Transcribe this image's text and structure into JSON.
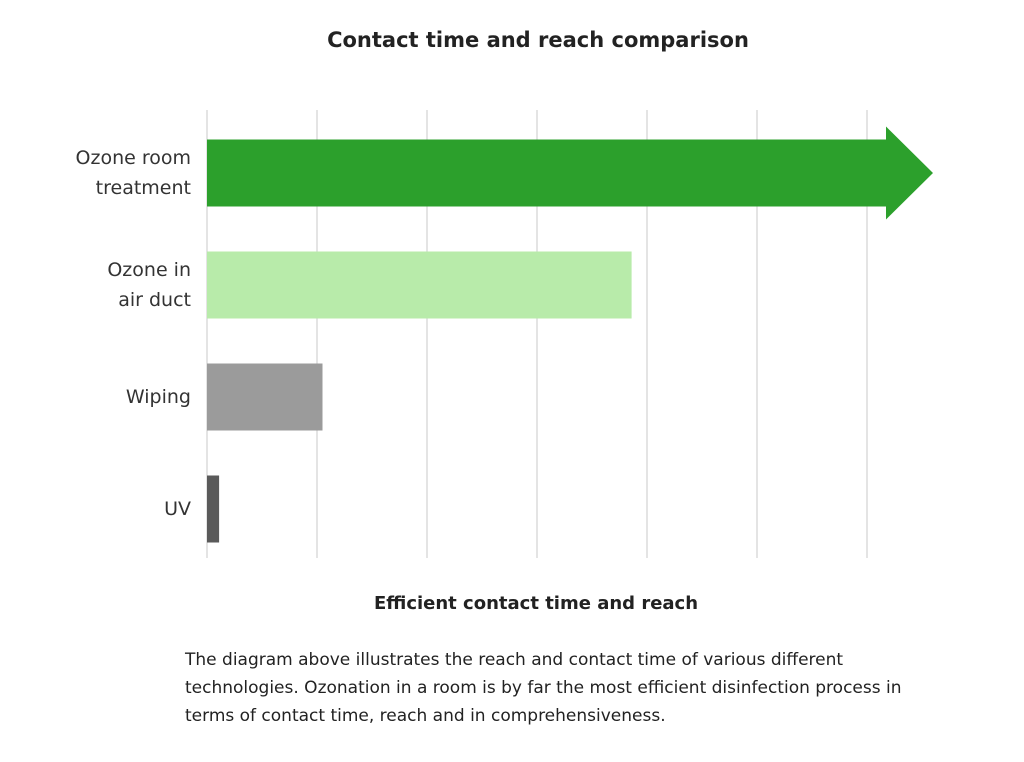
{
  "chart_data": {
    "type": "bar",
    "orientation": "horizontal",
    "title": "Contact time and reach comparison",
    "xlabel": "Efficient contact time and reach",
    "categories": [
      "Ozone room\ntreatment",
      "Ozone in\nair duct",
      "Wiping",
      "UV"
    ],
    "values": [
      6.6,
      3.86,
      1.05,
      0.11
    ],
    "colors": [
      "#2ca02c",
      "#b8ebaa",
      "#9b9b9b",
      "#5a5a5a"
    ],
    "arrow": [
      true,
      false,
      false,
      false
    ],
    "xlim": [
      0,
      6.6
    ],
    "xticks": [
      0,
      1,
      2,
      3,
      4,
      5,
      6
    ],
    "grid": true
  },
  "description": "The diagram above illustrates the reach and contact time of various different technologies. Ozonation in a room is by far the most efficient disinfection process in terms of contact time, reach and in comprehensiveness."
}
